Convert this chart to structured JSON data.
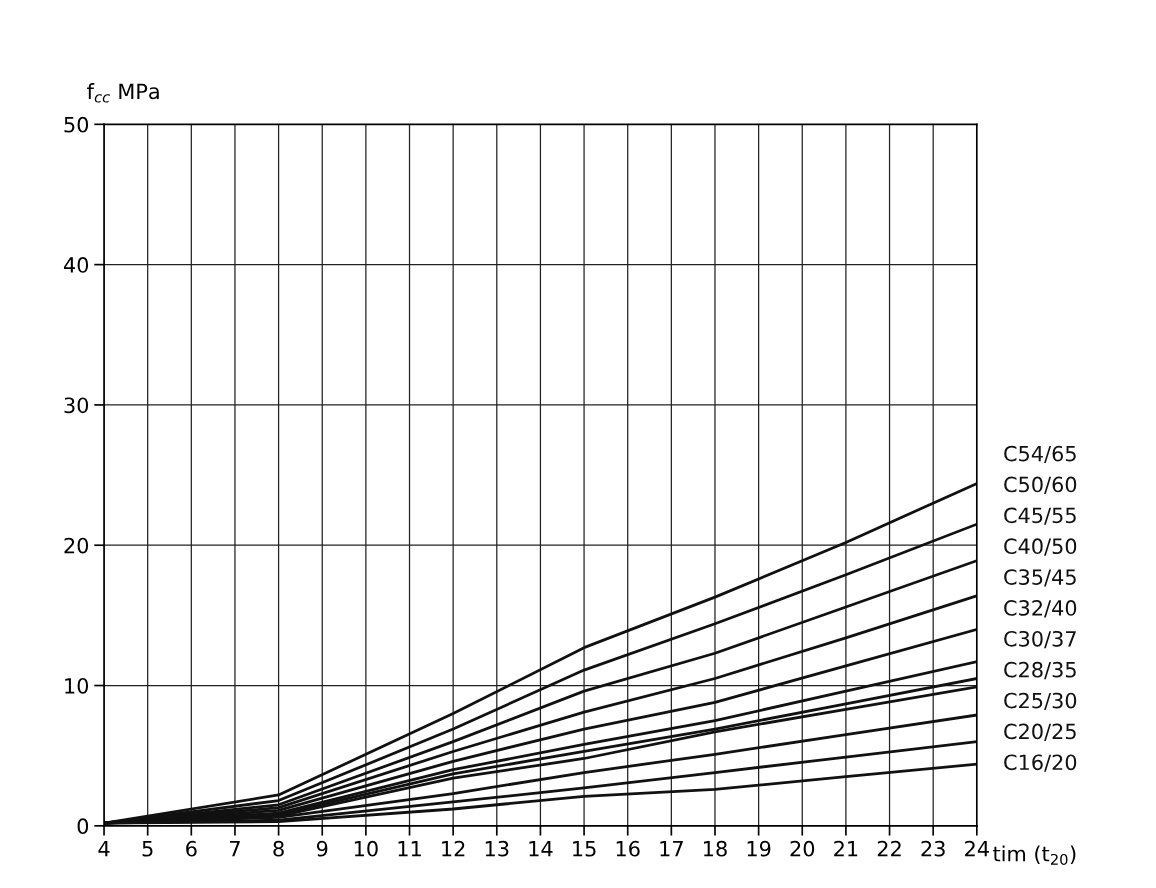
{
  "chart_data": {
    "type": "line",
    "ylabel": "f$_{cc}$ MPa",
    "xlabel": "tim (t$_{20}$)",
    "x": [
      4,
      8,
      12,
      15,
      18,
      21,
      24
    ],
    "series": [
      {
        "name": "C54/65",
        "color": "#111111",
        "values": [
          0.2,
          2.2,
          8.0,
          12.7,
          16.3,
          20.2,
          24.4
        ]
      },
      {
        "name": "C50/60",
        "color": "#111111",
        "values": [
          0.2,
          1.8,
          6.9,
          11.1,
          14.4,
          17.9,
          21.5
        ]
      },
      {
        "name": "C45/55",
        "color": "#111111",
        "values": [
          0.2,
          1.5,
          6.0,
          9.6,
          12.3,
          15.6,
          18.9
        ]
      },
      {
        "name": "C40/50",
        "color": "#111111",
        "values": [
          0.2,
          1.3,
          5.3,
          8.1,
          10.5,
          13.4,
          16.4
        ]
      },
      {
        "name": "C35/45",
        "color": "#111111",
        "values": [
          0.2,
          1.1,
          4.6,
          6.9,
          8.8,
          11.4,
          14.0
        ]
      },
      {
        "name": "C32/40",
        "color": "#111111",
        "values": [
          0.2,
          0.9,
          4.0,
          5.8,
          7.5,
          9.6,
          11.7
        ]
      },
      {
        "name": "C30/37",
        "color": "#111111",
        "values": [
          0.2,
          0.8,
          3.7,
          5.3,
          6.9,
          8.7,
          10.5
        ]
      },
      {
        "name": "C28/35",
        "color": "#111111",
        "values": [
          0.2,
          0.7,
          3.4,
          4.8,
          6.7,
          8.3,
          9.9
        ]
      },
      {
        "name": "C25/30",
        "color": "#111111",
        "values": [
          0.2,
          0.6,
          2.3,
          3.8,
          5.1,
          6.5,
          7.9
        ]
      },
      {
        "name": "C20/25",
        "color": "#111111",
        "values": [
          0.2,
          0.4,
          1.7,
          2.7,
          3.8,
          4.9,
          6.0
        ]
      },
      {
        "name": "C16/20",
        "color": "#111111",
        "values": [
          0.2,
          0.3,
          1.2,
          2.1,
          2.6,
          3.5,
          4.4
        ]
      }
    ],
    "xlim": [
      4,
      24
    ],
    "ylim": [
      0,
      50
    ],
    "xticks": [
      4,
      5,
      6,
      7,
      8,
      9,
      10,
      11,
      12,
      13,
      14,
      15,
      16,
      17,
      18,
      19,
      20,
      21,
      22,
      23,
      24
    ],
    "yticks": [
      0,
      10,
      20,
      30,
      40,
      50
    ],
    "grid": true,
    "legend": false,
    "marker": "none",
    "line_style": "solid"
  }
}
